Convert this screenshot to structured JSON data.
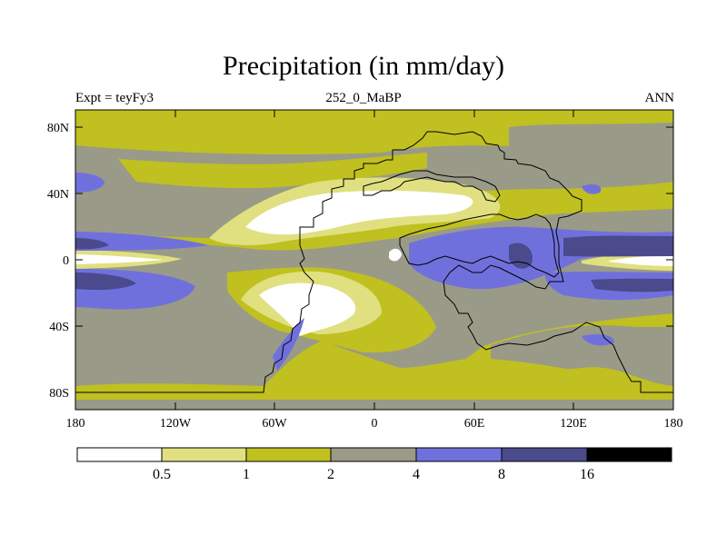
{
  "title": "Precipitation (in mm/day)",
  "subtitle_left": "Expt = teyFy3",
  "subtitle_center": "252_0_MaBP",
  "subtitle_right": "ANN",
  "axes": {
    "y_ticks": [
      "80N",
      "40N",
      "0",
      "40S",
      "80S"
    ],
    "x_ticks": [
      "180",
      "120W",
      "60W",
      "0",
      "60E",
      "120E",
      "180"
    ]
  },
  "colorbar": {
    "labels": [
      "0.5",
      "1",
      "2",
      "4",
      "8",
      "16"
    ],
    "colors": [
      "#ffffff",
      "#e0e080",
      "#c0c020",
      "#9a9a88",
      "#7070dd",
      "#4a4a8c",
      "#000000"
    ]
  },
  "palette": {
    "white": "#ffffff",
    "pale_yellow": "#e0e080",
    "olive": "#c0c020",
    "gray": "#9a9a88",
    "blue": "#7070dd",
    "navy": "#4a4a8c",
    "black": "#000000"
  }
}
